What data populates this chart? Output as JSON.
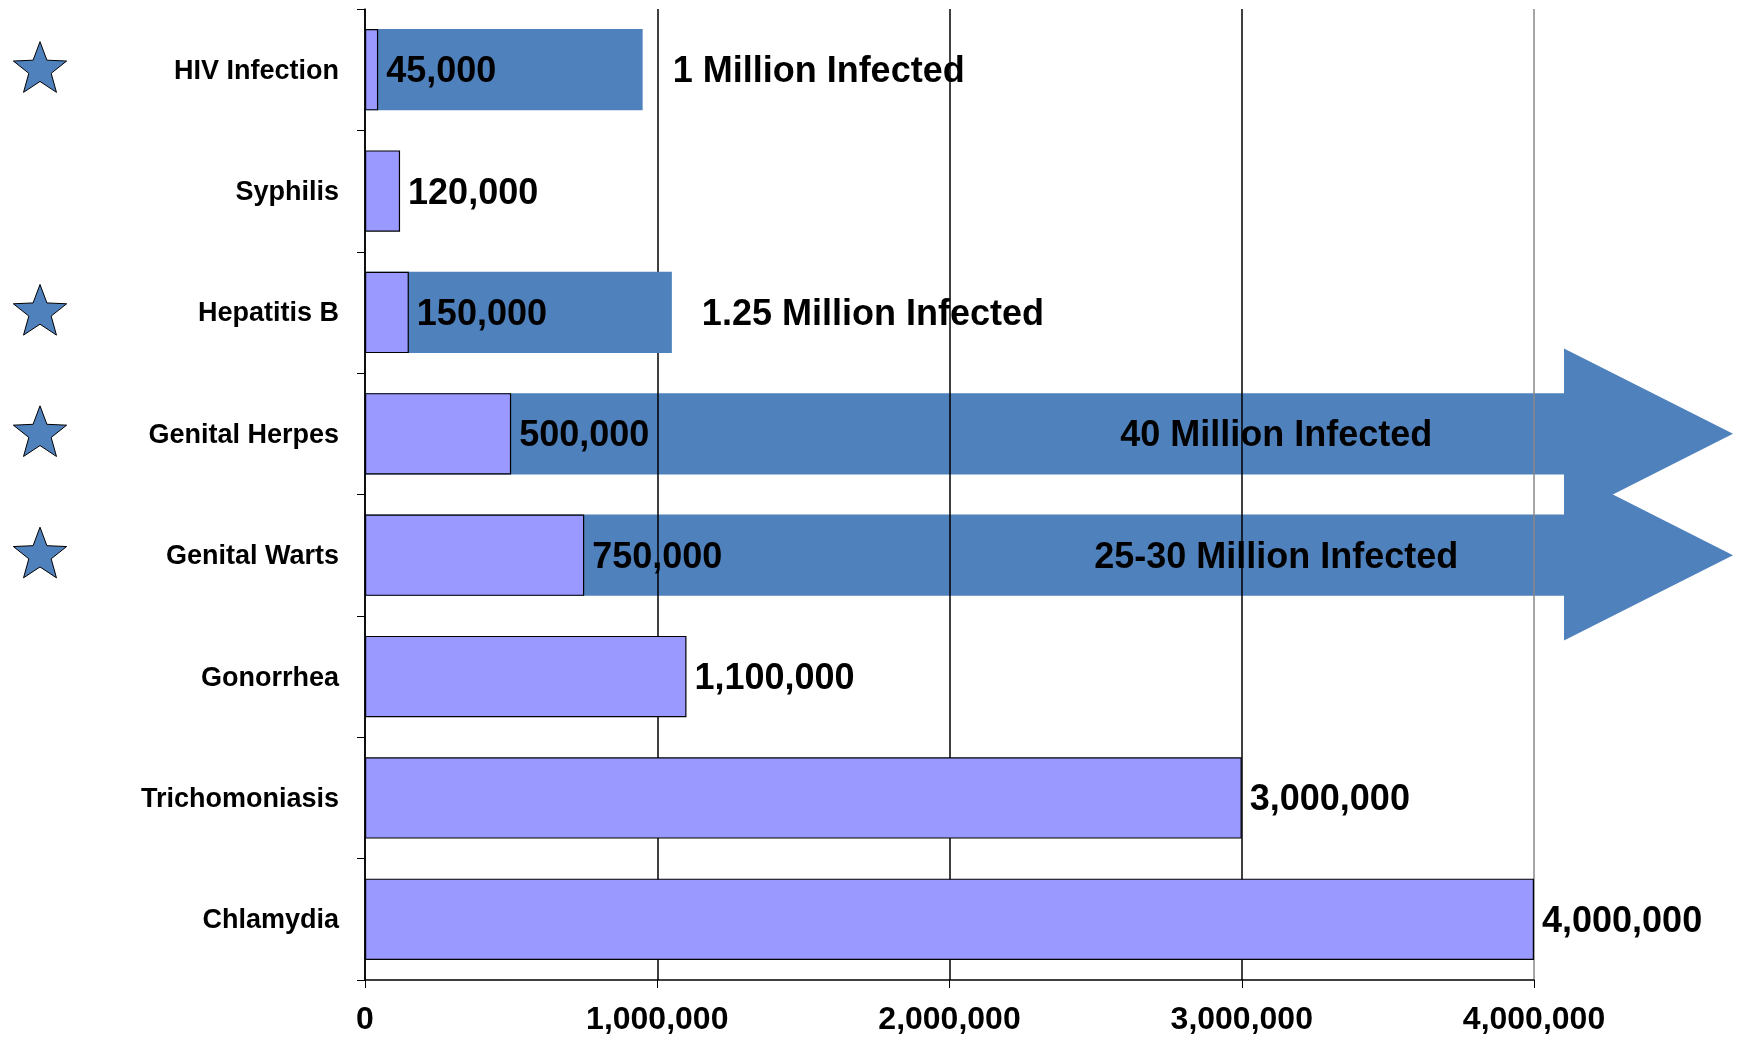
{
  "chart_data": {
    "type": "bar",
    "orientation": "horizontal",
    "categories": [
      "HIV Infection",
      "Syphilis",
      "Hepatitis B",
      "Genital Herpes",
      "Genital Warts",
      "Gonorrhea",
      "Trichomoniasis",
      "Chlamydia"
    ],
    "xlim": [
      0,
      4000000
    ],
    "xticks": [
      {
        "value": 0,
        "label": "0"
      },
      {
        "value": 1000000,
        "label": "1,000,000"
      },
      {
        "value": 2000000,
        "label": "2,000,000"
      },
      {
        "value": 3000000,
        "label": "3,000,000"
      },
      {
        "value": 4000000,
        "label": "4,000,000"
      }
    ],
    "grid": "x",
    "series": [
      {
        "color": "#4f81bd",
        "values": [
          950000,
          null,
          1050000,
          null,
          null,
          null,
          null,
          null
        ]
      },
      {
        "color": "#9999ff",
        "values": [
          45000,
          120000,
          150000,
          500000,
          750000,
          1100000,
          3000000,
          4000000
        ],
        "value_labels": [
          "45,000",
          "120,000",
          "150,000",
          "500,000",
          "750,000",
          "1,100,000",
          "3,000,000",
          "4,000,000"
        ]
      }
    ],
    "annotations": [
      "1 Million Infected",
      "1.25 Million Infected",
      "40 Million Infected",
      "25-30 Million Infected"
    ]
  }
}
